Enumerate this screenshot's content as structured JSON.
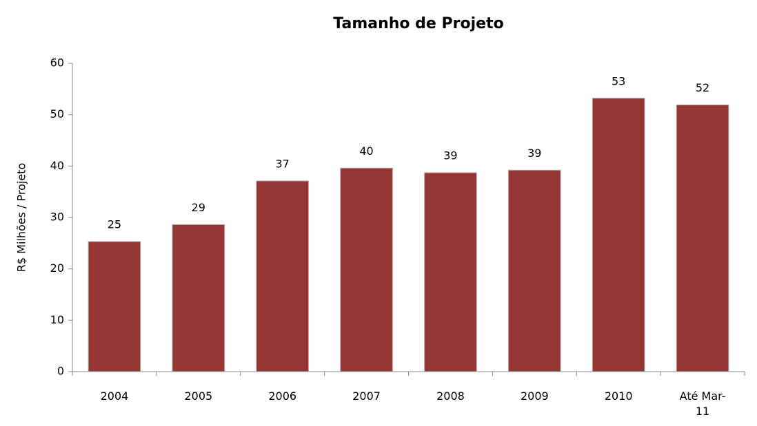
{
  "chart_data": {
    "type": "bar",
    "title": "Tamanho de Projeto",
    "y_label": "R$ Milhões / Projeto",
    "categories": [
      "2004",
      "2005",
      "2006",
      "2007",
      "2008",
      "2009",
      "2010",
      "Até Mar-11"
    ],
    "values": [
      25.3,
      28.6,
      37.1,
      39.6,
      38.7,
      39.2,
      53.2,
      51.9
    ],
    "value_labels": [
      "25",
      "29",
      "37",
      "40",
      "39",
      "39",
      "53",
      "52"
    ],
    "color": "#943634",
    "ylim": [
      0,
      60
    ],
    "yticks": [
      0,
      10,
      20,
      30,
      40,
      50,
      60
    ],
    "grid": false
  }
}
